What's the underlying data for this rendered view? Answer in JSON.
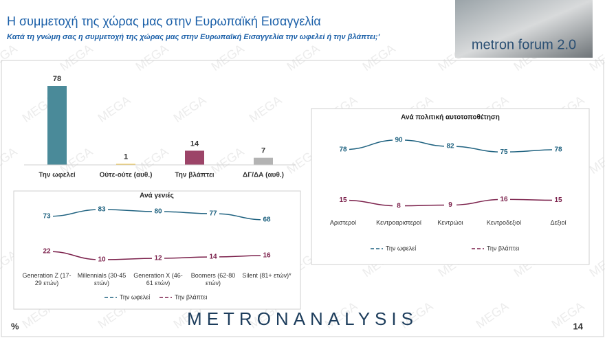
{
  "header": {
    "title": "Η συμμετοχή της χώρας μας στην Ευρωπαϊκή Εισαγγελία",
    "subtitle": "Κατά τη γνώμη σας η συμμετοχή της χώρας μας στην Ευρωπαϊκή Εισαγγελία την ωφελεί ή την βλάπτει;'",
    "logo": "metron forum 2.0"
  },
  "watermark": "MEGA",
  "chart_data": [
    {
      "type": "bar",
      "categories": [
        "Την ωφελεί",
        "Ούτε-ούτε (αυθ.)",
        "Την βλάπτει",
        "ΔΓ/ΔΑ (αυθ.)"
      ],
      "values": [
        78,
        1,
        14,
        7
      ],
      "colors": [
        "#4a8a99",
        "#f2c94c",
        "#9c4468",
        "#b3b3b3"
      ]
    },
    {
      "type": "line",
      "title": "Ανά γενιές",
      "categories": [
        "Generation Z (17-29 ετών)",
        "Millennials (30-45 ετών)",
        "Generation X (46-61 ετών)",
        "Boomers (62-80 ετών)",
        "Silent (81+ ετών)*"
      ],
      "series": [
        {
          "name": "Την ωφελεί",
          "color": "#1f6280",
          "values": [
            73,
            83,
            80,
            77,
            68
          ]
        },
        {
          "name": "Την βλάπτει",
          "color": "#7a1f4a",
          "values": [
            22,
            10,
            12,
            14,
            16
          ]
        }
      ]
    },
    {
      "type": "line",
      "title": "Ανά πολιτική αυτοτοποθέτηση",
      "categories": [
        "Αριστεροί",
        "Κεντροαριστεροί",
        "Κεντρώοι",
        "Κεντροδεξιοί",
        "Δεξιοί"
      ],
      "series": [
        {
          "name": "Την ωφελεί",
          "color": "#1f6280",
          "values": [
            78,
            90,
            82,
            75,
            78
          ]
        },
        {
          "name": "Την βλάπτει",
          "color": "#7a1f4a",
          "values": [
            15,
            8,
            9,
            16,
            15
          ]
        }
      ]
    }
  ],
  "footer": {
    "unit": "%",
    "brand": "METRONANALYSIS",
    "page": "14"
  }
}
